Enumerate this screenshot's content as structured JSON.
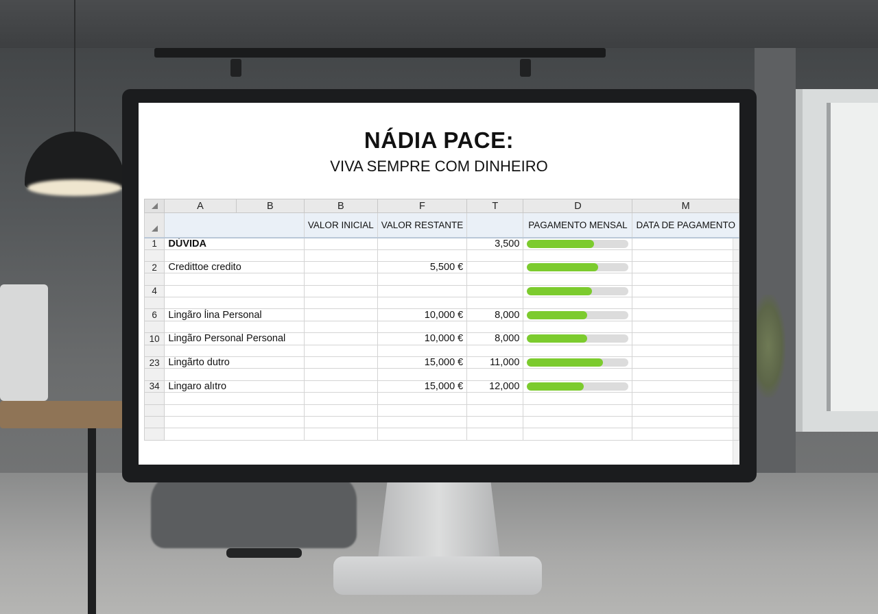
{
  "sheet": {
    "title": "NÁDIA PACE:",
    "subtitle": "VIVA SEMPRE COM DINHEIRO"
  },
  "columns": [
    "A",
    "B",
    "B",
    "F",
    "T",
    "D",
    "M"
  ],
  "labels": {
    "valor_inicial": "VALOR INICIAL",
    "valor_restante": "VALOR RESTANTE",
    "pagamento_mensal": "PAGAMENTO MENSAL",
    "data_de_pagamento": "DATA DE PAGAMENTO"
  },
  "rows": [
    {
      "num": "1",
      "name": "DÚVIDA",
      "valor_inicial": "",
      "valor_restante": "",
      "t": "3,500",
      "progress": 0.66,
      "data_pagamento": ""
    },
    {
      "num": "2",
      "name": "Credittoе credito",
      "valor_inicial": "",
      "valor_restante": "5,500 €",
      "t": "",
      "progress": 0.7,
      "data_pagamento": ""
    },
    {
      "num": "4",
      "name": "",
      "valor_inicial": "",
      "valor_restante": "",
      "t": "",
      "progress": 0.64,
      "data_pagamento": ""
    },
    {
      "num": "6",
      "name": "Lingãro ĺina Personal",
      "valor_inicial": "",
      "valor_restante": "10,000 €",
      "t": "8,000",
      "progress": 0.59,
      "data_pagamento": ""
    },
    {
      "num": "10",
      "name": "Lingãro Personal Personal",
      "valor_inicial": "",
      "valor_restante": "10,000 €",
      "t": "8,000",
      "progress": 0.59,
      "data_pagamento": ""
    },
    {
      "num": "23",
      "name": "Lingãrto dutro",
      "valor_inicial": "",
      "valor_restante": "15,000 €",
      "t": "11,000",
      "progress": 0.75,
      "data_pagamento": ""
    },
    {
      "num": "34",
      "name": "Lingaro alıtro",
      "valor_inicial": "",
      "valor_restante": "15,000 €",
      "t": "12,000",
      "progress": 0.56,
      "data_pagamento": ""
    }
  ],
  "colors": {
    "progress_fill": "#7ccb2e",
    "progress_track": "#dcdcdc",
    "header_bg": "#e9e9e9",
    "label_row_bg": "#eaf0f7"
  }
}
